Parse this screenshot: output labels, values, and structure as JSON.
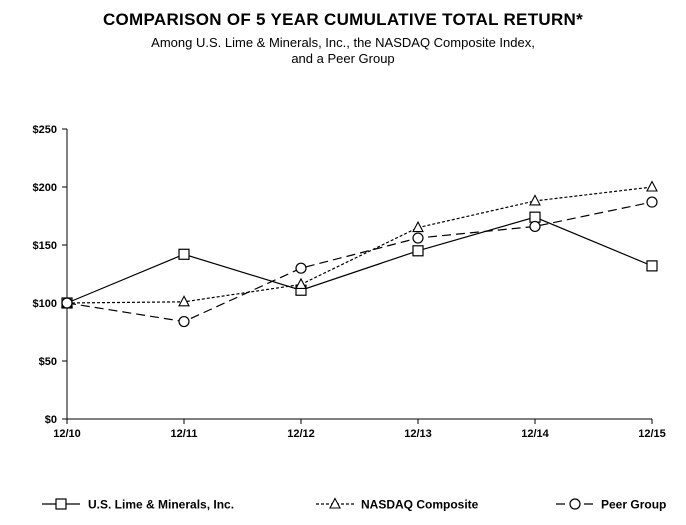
{
  "header": {
    "title": "COMPARISON OF 5 YEAR CUMULATIVE TOTAL RETURN*",
    "subtitle_line1": "Among U.S. Lime & Minerals, Inc., the NASDAQ Composite Index,",
    "subtitle_line2": "and a Peer Group"
  },
  "chart_data": {
    "type": "line",
    "title": "COMPARISON OF 5 YEAR CUMULATIVE TOTAL RETURN*",
    "xlabel": "",
    "ylabel": "",
    "categories": [
      "12/10",
      "12/11",
      "12/12",
      "12/13",
      "12/14",
      "12/15"
    ],
    "ylim": [
      0,
      250
    ],
    "yticks": [
      0,
      50,
      100,
      150,
      200,
      250
    ],
    "ytick_labels": [
      "$0",
      "$50",
      "$100",
      "$150",
      "$200",
      "$250"
    ],
    "grid": false,
    "legend_position": "bottom",
    "series": [
      {
        "name": "U.S. Lime & Minerals, Inc.",
        "marker": "square",
        "dash": "solid",
        "values": [
          100,
          142,
          111,
          145,
          174,
          132
        ]
      },
      {
        "name": "NASDAQ Composite",
        "marker": "triangle",
        "dash": "dotted",
        "values": [
          100,
          101,
          116,
          165,
          188,
          200
        ]
      },
      {
        "name": "Peer Group",
        "marker": "circle",
        "dash": "dashed",
        "values": [
          100,
          84,
          130,
          156,
          166,
          187
        ]
      }
    ]
  }
}
